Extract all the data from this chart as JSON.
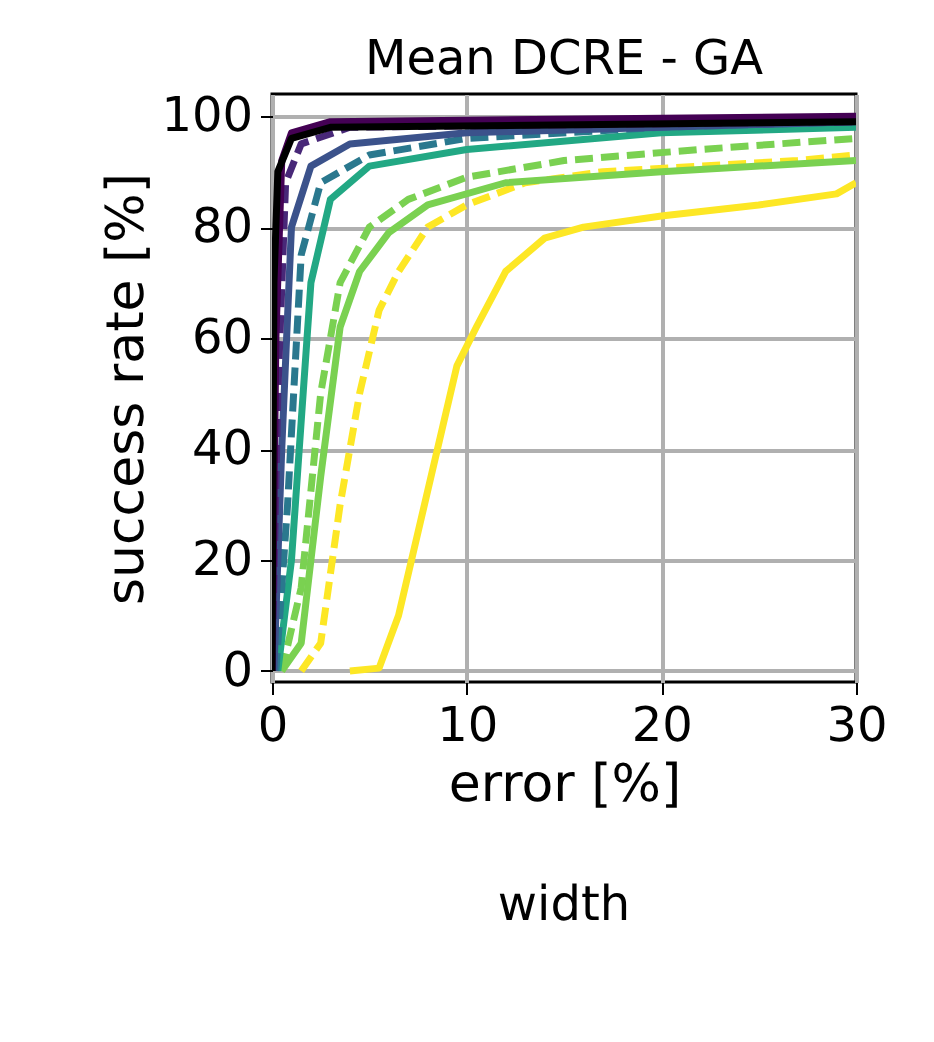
{
  "chart_data": {
    "type": "line",
    "title": "Mean DCRE - GA",
    "xlabel": "error [%]",
    "ylabel": "success rate [%]",
    "annotations": [
      "width"
    ],
    "xlim": [
      0,
      30
    ],
    "ylim": [
      -2,
      104
    ],
    "xticks": [
      0,
      10,
      20,
      30
    ],
    "yticks": [
      0,
      20,
      40,
      60,
      80,
      100
    ],
    "grid": true,
    "marker": "none",
    "series": [
      {
        "color": "#fde725",
        "line_style": "solid",
        "x": [
          4,
          5.5,
          6.5,
          7.5,
          8.5,
          9.5,
          10.5,
          12,
          14,
          16,
          20,
          25,
          29,
          30
        ],
        "values": [
          0,
          0.5,
          10,
          25,
          40,
          55,
          62,
          72,
          78,
          80,
          82,
          84,
          86,
          88
        ]
      },
      {
        "color": "#fde725",
        "line_style": "dashed",
        "x": [
          1.5,
          2.5,
          3.5,
          4.5,
          5.5,
          6.5,
          8,
          10,
          13,
          17,
          22,
          27,
          30
        ],
        "values": [
          0,
          5,
          30,
          50,
          65,
          72,
          80,
          84,
          88,
          90,
          91,
          92,
          93
        ]
      },
      {
        "color": "#7ad151",
        "line_style": "solid",
        "x": [
          0.5,
          1.5,
          2.5,
          3.5,
          4.5,
          6,
          8,
          12,
          20,
          30
        ],
        "values": [
          0,
          5,
          35,
          62,
          72,
          79,
          84,
          88,
          90,
          92
        ]
      },
      {
        "color": "#7ad151",
        "line_style": "dashed",
        "x": [
          0.5,
          1.5,
          2.5,
          3.5,
          5,
          7,
          10,
          15,
          22,
          30
        ],
        "values": [
          0,
          15,
          50,
          70,
          80,
          85,
          89,
          92,
          94,
          96
        ]
      },
      {
        "color": "#22a884",
        "line_style": "solid",
        "x": [
          0.3,
          1,
          2,
          3,
          5,
          10,
          20,
          30
        ],
        "values": [
          0,
          20,
          70,
          85,
          91,
          94,
          97,
          98
        ]
      },
      {
        "color": "#2a788e",
        "line_style": "dashed",
        "x": [
          0.2,
          0.8,
          1.5,
          2.5,
          5,
          10,
          20,
          30
        ],
        "values": [
          0,
          30,
          75,
          88,
          93,
          96,
          98,
          99
        ]
      },
      {
        "color": "#3b528b",
        "line_style": "solid",
        "x": [
          0.1,
          0.5,
          1,
          2,
          4,
          10,
          30
        ],
        "values": [
          0,
          40,
          80,
          91,
          95,
          97,
          99
        ]
      },
      {
        "color": "#482878",
        "line_style": "dashed",
        "x": [
          0,
          0.3,
          0.7,
          1.5,
          4,
          30
        ],
        "values": [
          0,
          50,
          88,
          95,
          98,
          99
        ]
      },
      {
        "color": "#440154",
        "line_style": "solid",
        "x": [
          0,
          0.2,
          0.5,
          1,
          3,
          30
        ],
        "values": [
          0,
          60,
          92,
          97,
          99,
          100
        ]
      },
      {
        "color": "#000000",
        "line_style": "solid",
        "x": [
          0,
          0.1,
          0.3,
          1,
          3,
          30
        ],
        "values": [
          0,
          70,
          90,
          96,
          98,
          99
        ]
      }
    ]
  }
}
